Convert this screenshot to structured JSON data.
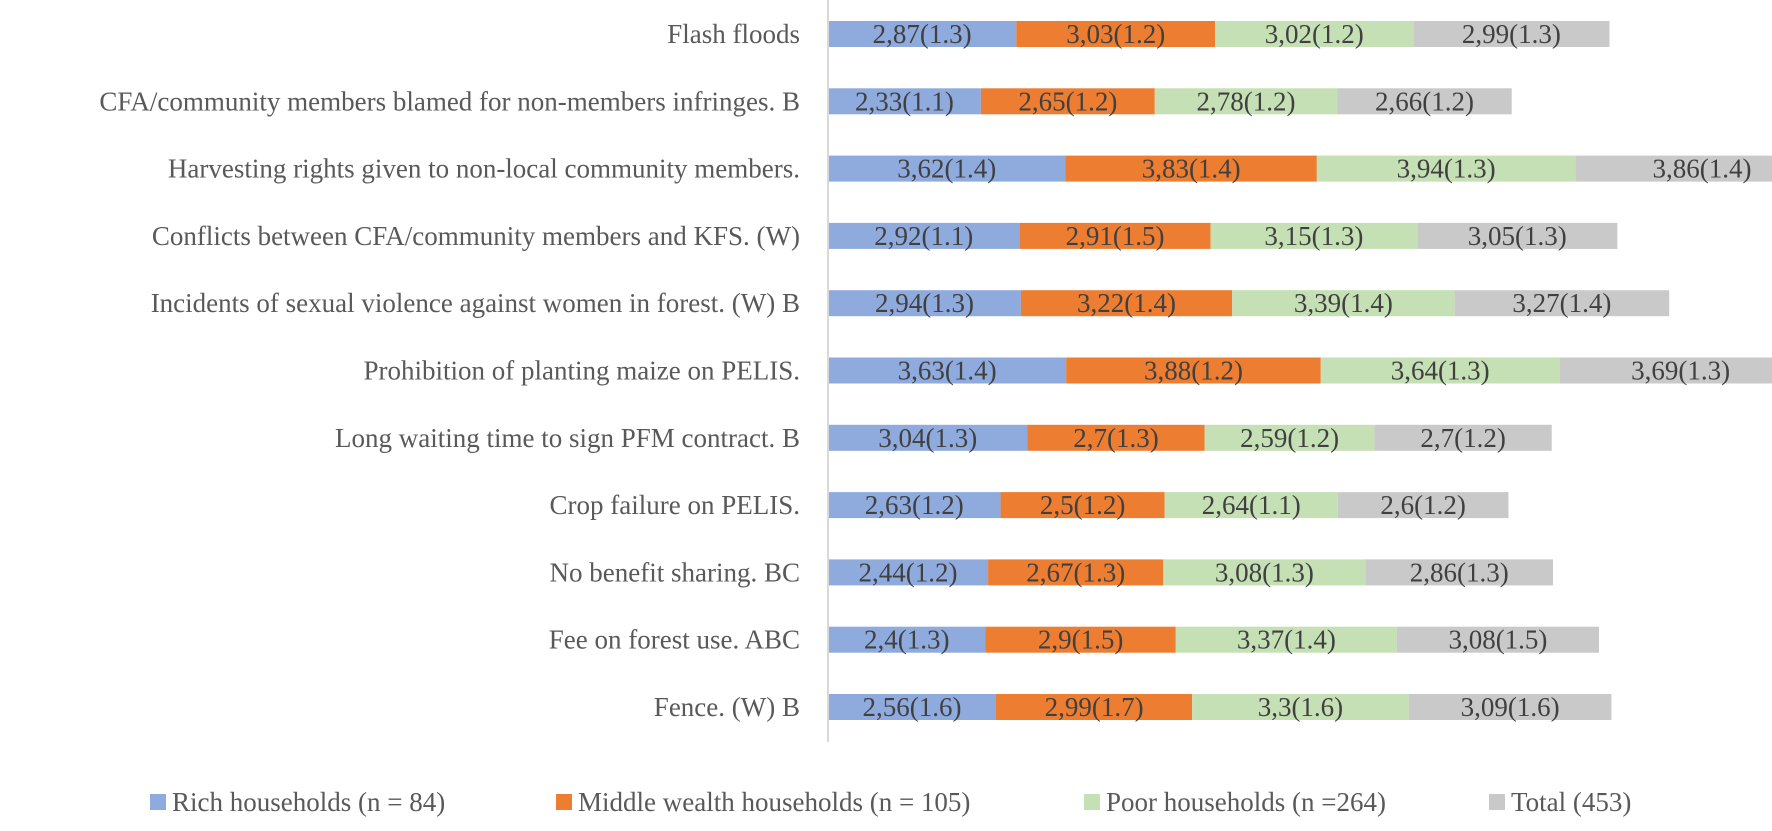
{
  "chart_data": {
    "type": "bar",
    "orientation": "horizontal",
    "stacked": true,
    "title": "",
    "xlabel": "",
    "ylabel": "",
    "grid": false,
    "legend_position": "bottom",
    "categories": [
      "Flash floods",
      "CFA/community members blamed for non-members infringes. B",
      "Harvesting rights given to non-local community members.",
      "Conflicts between CFA/community members and KFS. (W)",
      "Incidents of sexual violence against women in forest. (W) B",
      "Prohibition of planting maize on PELIS.",
      "Long waiting time to sign PFM contract. B",
      "Crop failure on PELIS.",
      "No benefit sharing. BC",
      "Fee on forest use. ABC",
      "Fence. (W) B"
    ],
    "series": [
      {
        "name": "Rich households (n = 84)",
        "color": "#8faadc",
        "values": [
          2.87,
          2.33,
          3.62,
          2.92,
          2.94,
          3.63,
          3.04,
          2.63,
          2.44,
          2.4,
          2.56
        ],
        "labels": [
          "2,87(1.3)",
          "2,33(1.1)",
          "3,62(1.4)",
          "2,92(1.1)",
          "2,94(1.3)",
          "3,63(1.4)",
          "3,04(1.3)",
          "2,63(1.2)",
          "2,44(1.2)",
          "2,4(1.3)",
          "2,56(1.6)"
        ]
      },
      {
        "name": "Middle wealth households (n = 105)",
        "color": "#ed7d31",
        "values": [
          3.03,
          2.65,
          3.83,
          2.91,
          3.22,
          3.88,
          2.7,
          2.5,
          2.67,
          2.9,
          2.99
        ],
        "labels": [
          "3,03(1.2)",
          "2,65(1.2)",
          "3,83(1.4)",
          "2,91(1.5)",
          "3,22(1.4)",
          "3,88(1.2)",
          "2,7(1.3)",
          "2,5(1.2)",
          "2,67(1.3)",
          "2,9(1.5)",
          "2,99(1.7)"
        ]
      },
      {
        "name": "Poor households (n =264)",
        "color": "#c5e0b4",
        "values": [
          3.02,
          2.78,
          3.94,
          3.15,
          3.39,
          3.64,
          2.59,
          2.64,
          3.08,
          3.37,
          3.3
        ],
        "labels": [
          "3,02(1.2)",
          "2,78(1.2)",
          "3,94(1.3)",
          "3,15(1.3)",
          "3,39(1.4)",
          "3,64(1.3)",
          "2,59(1.2)",
          "2,64(1.1)",
          "3,08(1.3)",
          "3,37(1.4)",
          "3,3(1.6)"
        ]
      },
      {
        "name": "Total (453)",
        "color": "#c9c9c9",
        "values": [
          2.99,
          2.66,
          3.86,
          3.05,
          3.27,
          3.69,
          2.7,
          2.6,
          2.86,
          3.08,
          3.09
        ],
        "labels": [
          "2,99(1.3)",
          "2,66(1.2)",
          "3,86(1.4)",
          "3,05(1.3)",
          "3,27(1.4)",
          "3,69(1.3)",
          "2,7(1.2)",
          "2,6(1.2)",
          "2,86(1.3)",
          "3,08(1.5)",
          "3,09(1.6)"
        ]
      }
    ]
  }
}
